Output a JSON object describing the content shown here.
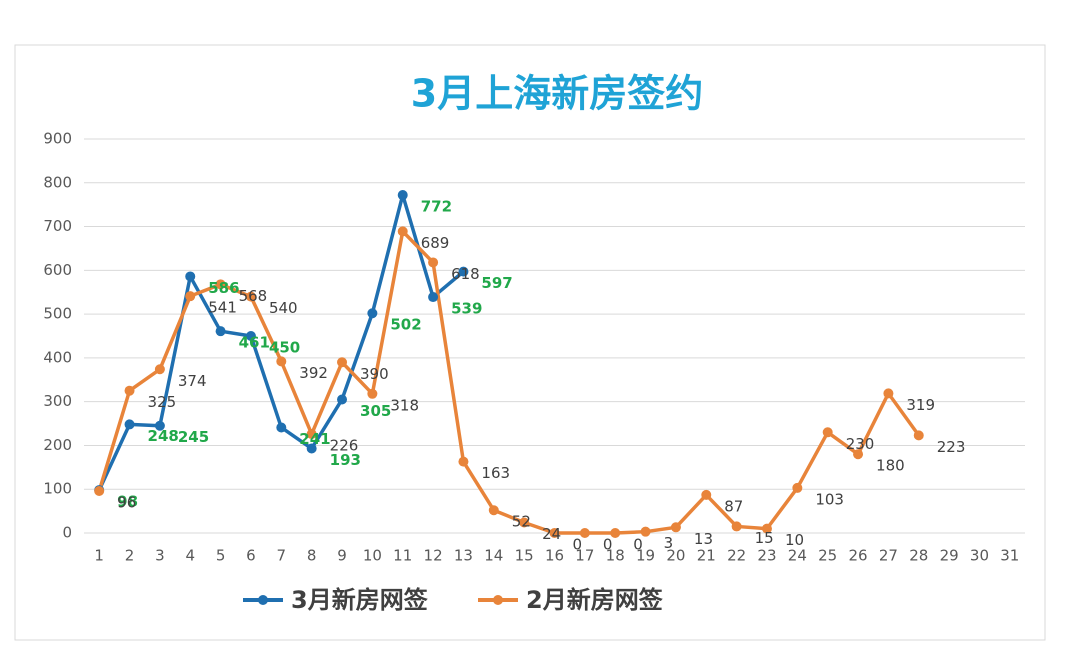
{
  "chart_data": {
    "type": "line",
    "title": "3月上海新房签约",
    "categories": [
      "1",
      "2",
      "3",
      "4",
      "5",
      "6",
      "7",
      "8",
      "9",
      "10",
      "11",
      "12",
      "13",
      "14",
      "15",
      "16",
      "17",
      "18",
      "19",
      "20",
      "21",
      "22",
      "23",
      "24",
      "25",
      "26",
      "27",
      "28",
      "29",
      "30",
      "31"
    ],
    "series": [
      {
        "name": "3月新房网签",
        "color": "#1f6fb0",
        "label_color": "#21a84a",
        "values": [
          98,
          248,
          245,
          586,
          461,
          450,
          241,
          193,
          305,
          502,
          772,
          539,
          597,
          null,
          null,
          null,
          null,
          null,
          null,
          null,
          null,
          null,
          null,
          null,
          null,
          null,
          null,
          null,
          null,
          null,
          null
        ]
      },
      {
        "name": "2月新房网签",
        "color": "#e8843a",
        "label_color": "#404040",
        "values": [
          96,
          325,
          374,
          541,
          568,
          540,
          392,
          226,
          390,
          318,
          689,
          618,
          163,
          52,
          24,
          0,
          0,
          0,
          3,
          13,
          87,
          15,
          10,
          103,
          230,
          180,
          319,
          223,
          null,
          null,
          null
        ]
      }
    ],
    "ylim": [
      0,
      900
    ],
    "yticks": [
      0,
      100,
      200,
      300,
      400,
      500,
      600,
      700,
      800,
      900
    ],
    "grid": true
  }
}
